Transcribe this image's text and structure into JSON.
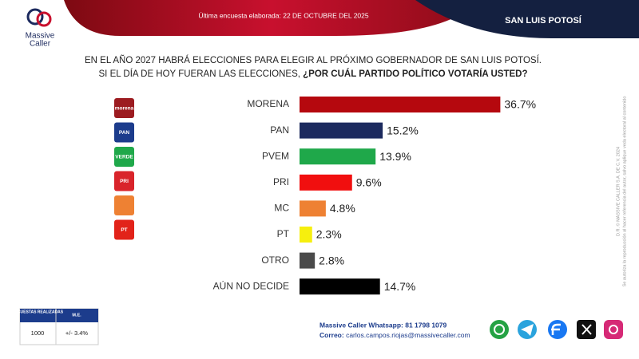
{
  "header": {
    "date_line": "Última encuesta elaborada: 22 DE OCTUBRE DEL 2025",
    "region": "SAN LUIS POTOSÍ",
    "brand_line1": "Massive",
    "brand_line2": "Caller"
  },
  "chart_data": {
    "type": "bar",
    "orientation": "horizontal",
    "title_line1": "EN EL AÑO 2027 HABRÁ ELECCIONES PARA ELEGIR AL PRÓXIMO GOBERNADOR DE SAN LUIS POTOSÍ.",
    "title_line2": "SI EL DÍA DE HOY FUERAN LAS ELECCIONES, ",
    "title_line2_bold": "¿POR CUÁL PARTIDO POLÍTICO VOTARÍA USTED?",
    "categories": [
      "MORENA",
      "PAN",
      "PVEM",
      "PRI",
      "MC",
      "PT",
      "OTRO",
      "AÚN NO DECIDE"
    ],
    "values": [
      36.7,
      15.2,
      13.9,
      9.6,
      4.8,
      2.3,
      2.8,
      14.7
    ],
    "value_labels": [
      "36.7%",
      "15.2%",
      "13.9%",
      "9.6%",
      "4.8%",
      "2.3%",
      "2.8%",
      "14.7%"
    ],
    "colors": [
      "#b5080e",
      "#1c2a5e",
      "#1fa84a",
      "#f10f0f",
      "#ee8133",
      "#f6ef0e",
      "#4a4a4a",
      "#000000"
    ]
  },
  "party_logos": [
    {
      "label": "morena",
      "color": "#9c1b20"
    },
    {
      "label": "PAN",
      "color": "#1c3c8c"
    },
    {
      "label": "VERDE",
      "color": "#1fa84a"
    },
    {
      "label": "PRI",
      "color": "#d9242b"
    },
    {
      "color": "#ee8133"
    },
    {
      "label": "PT",
      "color": "#e2231a"
    }
  ],
  "survey_table": {
    "header": [
      "ENCUESTAS REALIZADAS",
      "M.E."
    ],
    "row": [
      "1000",
      "+/- 3.4%"
    ]
  },
  "footer": {
    "whatsapp": "Massive Caller Whatsapp: 81 1798 1079",
    "email_label": "Correo: ",
    "email": "carlos.campos.riojas@massivecaller.com"
  },
  "side_note": {
    "line1": "D.R. © MASSIVE CALLER S.A. DE C.V. 2024",
    "line2": "Se autoriza la reproducción al hacer referencia del autor, salvo aplique veda electoral al contenido"
  }
}
